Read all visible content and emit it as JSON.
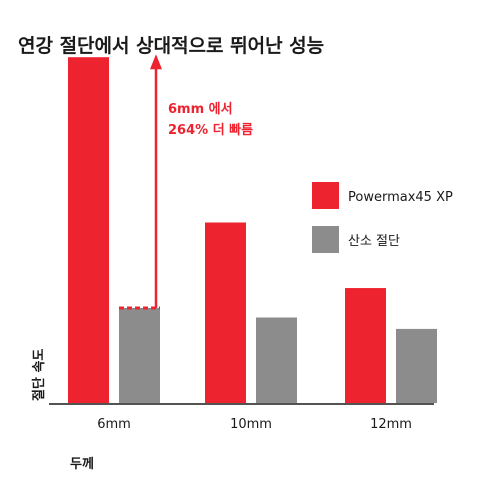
{
  "chart_data": {
    "type": "bar",
    "title": "연강 절단에서 상대적으로 뛰어난 성능",
    "xlabel": "두께",
    "ylabel": "절단 속도",
    "categories": [
      "6mm",
      "10mm",
      "12mm"
    ],
    "series": [
      {
        "name": "Powermax45 XP",
        "color": "#ed2330",
        "values": [
          364,
          190,
          121
        ]
      },
      {
        "name": "산소 절단",
        "color": "#8c8c8c",
        "values": [
          100,
          90,
          78
        ]
      }
    ],
    "ylim": [
      0,
      380
    ],
    "grid": false,
    "legend": "right",
    "annotation": {
      "line1": "6mm 에서",
      "line2": "264% 더 빠름",
      "color": "#ed2330",
      "category": "6mm",
      "from_value": 100,
      "to_value": 364
    }
  }
}
